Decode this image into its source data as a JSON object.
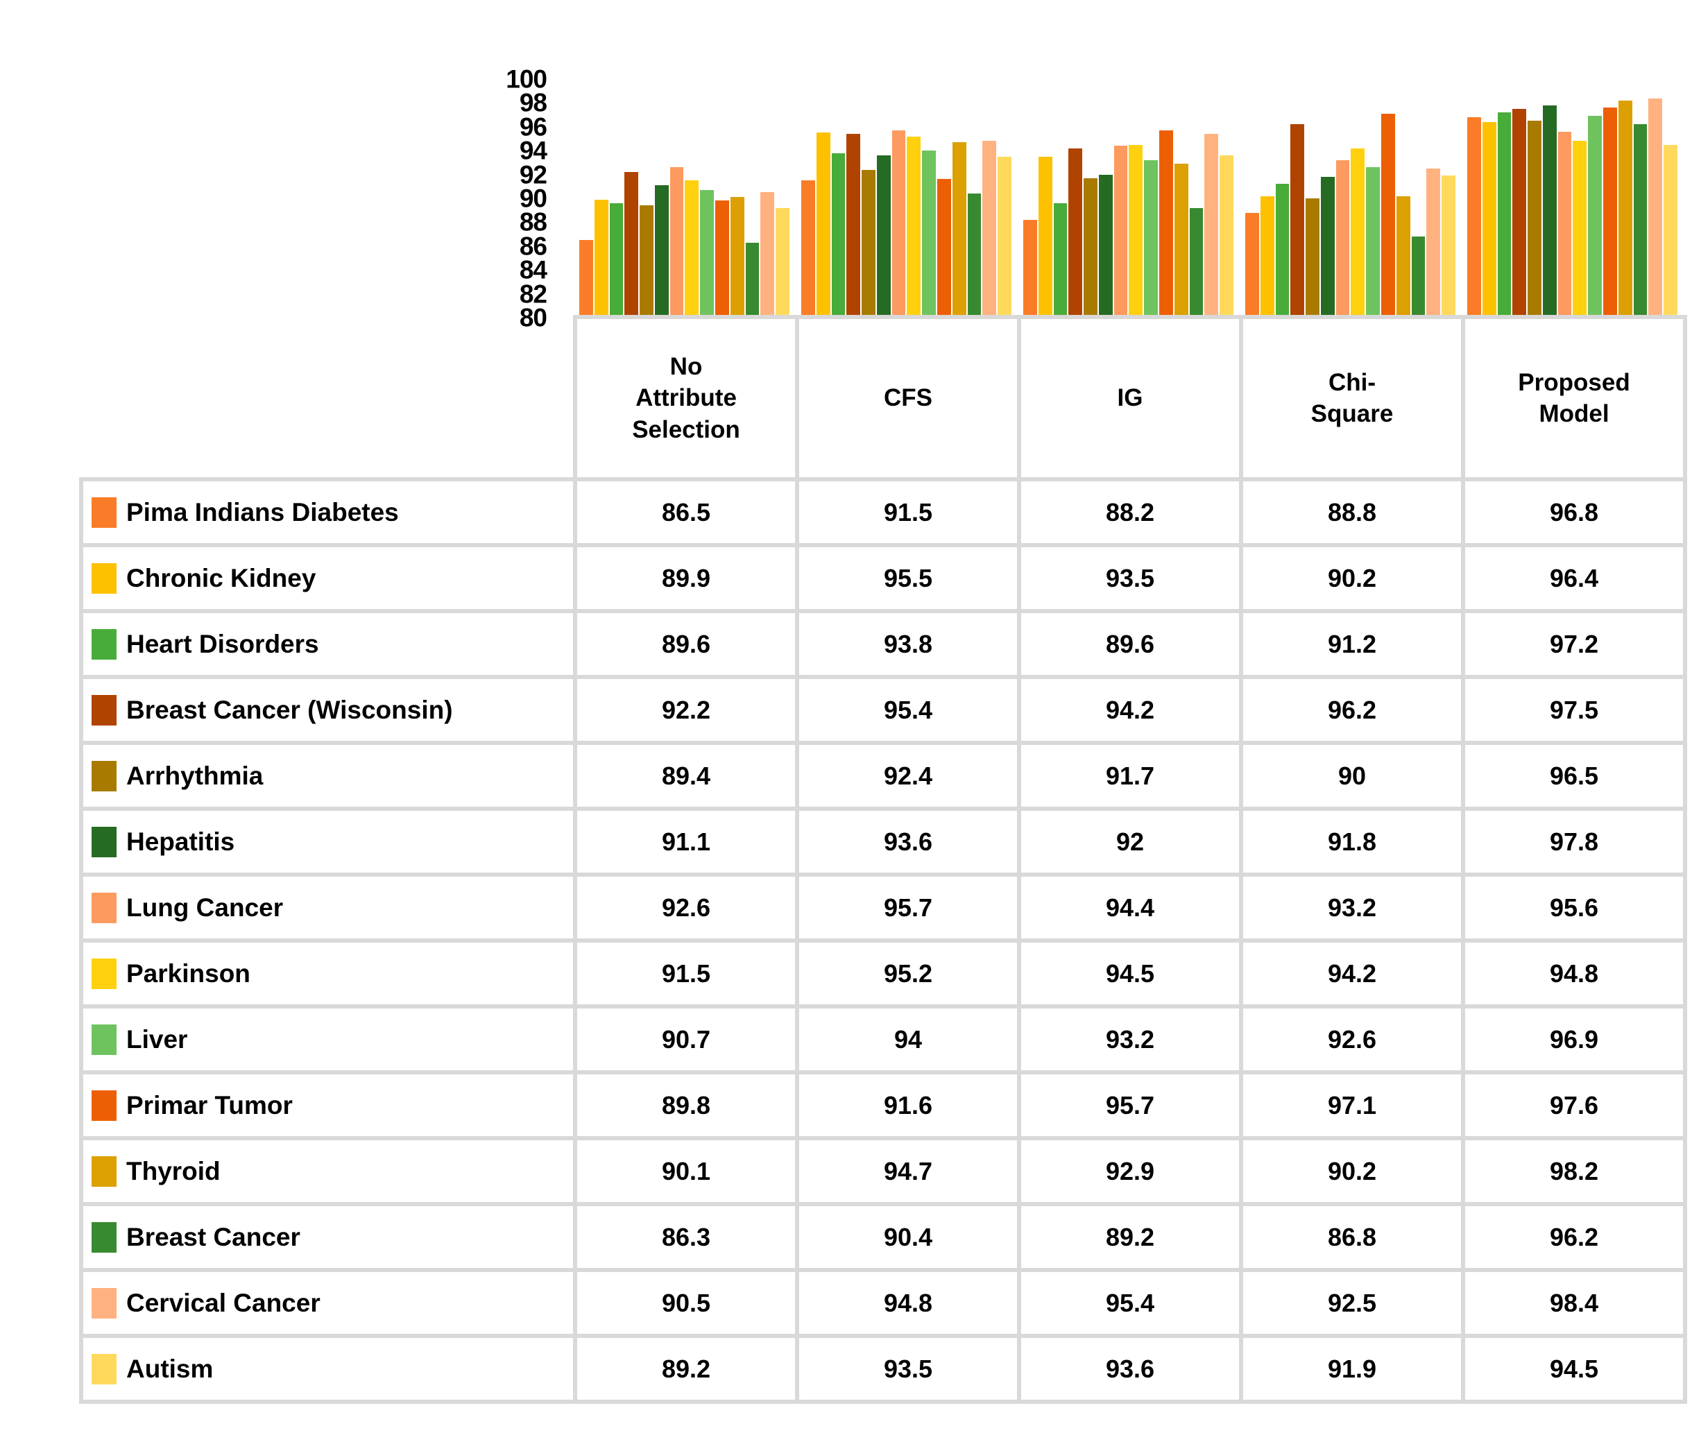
{
  "chart_data": {
    "type": "bar",
    "title": "",
    "xlabel": "",
    "ylabel": "",
    "ylim": [
      80,
      100
    ],
    "ytick_step": 2,
    "y_tick_labels": [
      "100",
      "98",
      "96",
      "94",
      "92",
      "90",
      "88",
      "86",
      "84",
      "82",
      "80"
    ],
    "grid": "off",
    "legend_position": "data-table-row-labels",
    "categories": [
      "No Attribute Selection",
      "CFS",
      "IG",
      "Chi-Square",
      "Proposed Model"
    ],
    "series": [
      {
        "name": "Pima Indians Diabetes",
        "color": "#FB7C28",
        "values": [
          86.5,
          91.5,
          88.2,
          88.8,
          96.8
        ]
      },
      {
        "name": "Chronic Kidney",
        "color": "#FEC100",
        "values": [
          89.9,
          95.5,
          93.5,
          90.2,
          96.4
        ]
      },
      {
        "name": "Heart Disorders",
        "color": "#47AC39",
        "values": [
          89.6,
          93.8,
          89.6,
          91.2,
          97.2
        ]
      },
      {
        "name": "Breast Cancer (Wisconsin)",
        "color": "#B04300",
        "values": [
          92.2,
          95.4,
          94.2,
          96.2,
          97.5
        ]
      },
      {
        "name": "Arrhythmia",
        "color": "#A87B00",
        "values": [
          89.4,
          92.4,
          91.7,
          90,
          96.5
        ]
      },
      {
        "name": "Hepatitis",
        "color": "#266B24",
        "values": [
          91.1,
          93.6,
          92,
          91.8,
          97.8
        ]
      },
      {
        "name": "Lung Cancer",
        "color": "#FD9A60",
        "values": [
          92.6,
          95.7,
          94.4,
          93.2,
          95.6
        ]
      },
      {
        "name": "Parkinson",
        "color": "#FFD00E",
        "values": [
          91.5,
          95.2,
          94.5,
          94.2,
          94.8
        ]
      },
      {
        "name": "Liver",
        "color": "#6FC35F",
        "values": [
          90.7,
          94,
          93.2,
          92.6,
          96.9
        ]
      },
      {
        "name": "Primar Tumor",
        "color": "#ED5F04",
        "values": [
          89.8,
          91.6,
          95.7,
          97.1,
          97.6
        ]
      },
      {
        "name": "Thyroid",
        "color": "#DCA002",
        "values": [
          90.1,
          94.7,
          92.9,
          90.2,
          98.2
        ]
      },
      {
        "name": "Breast Cancer",
        "color": "#388A30",
        "values": [
          86.3,
          90.4,
          89.2,
          86.8,
          96.2
        ]
      },
      {
        "name": "Cervical Cancer",
        "color": "#FFB27F",
        "values": [
          90.5,
          94.8,
          95.4,
          92.5,
          98.4
        ]
      },
      {
        "name": "Autism",
        "color": "#FFD95C",
        "values": [
          89.2,
          93.5,
          93.6,
          91.9,
          94.5
        ]
      }
    ]
  },
  "table": {
    "border_color": "#D9D9D9",
    "columns": [
      "No Attribute Selection",
      "CFS",
      "IG",
      "Chi-Square",
      "Proposed Model"
    ]
  }
}
